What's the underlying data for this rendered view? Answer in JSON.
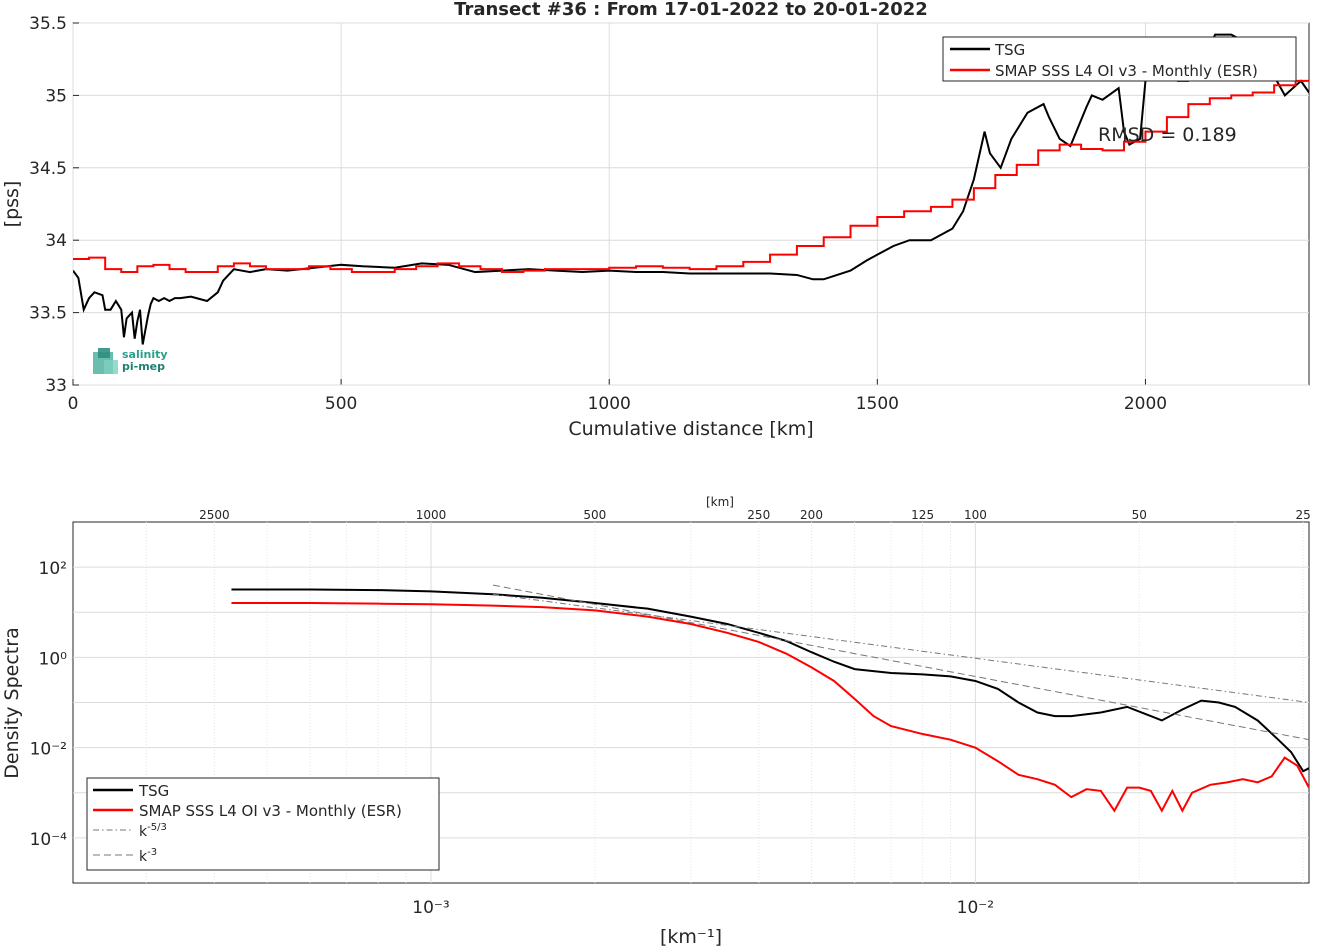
{
  "chart_data": [
    {
      "type": "line",
      "title": "Transect #36 : From 17-01-2022 to 20-01-2022",
      "xlabel": "Cumulative distance [km]",
      "ylabel": "[pss]",
      "xlim": [
        0,
        2305
      ],
      "ylim": [
        33,
        35.5
      ],
      "xticks": [
        "0",
        "500",
        "1000",
        "1500",
        "2000"
      ],
      "yticks": [
        "33",
        "33.5",
        "34",
        "34.5",
        "35",
        "35.5"
      ],
      "grid": true,
      "legend_position": "top-right",
      "annotation": "RMSD = 0.189",
      "logo_text": [
        "salinity",
        "pi-mep"
      ],
      "series": [
        {
          "name": "TSG",
          "color": "#000000",
          "x": [
            0,
            10,
            20,
            30,
            40,
            55,
            60,
            70,
            80,
            90,
            95,
            100,
            110,
            115,
            120,
            125,
            130,
            140,
            145,
            150,
            160,
            170,
            180,
            190,
            200,
            220,
            250,
            270,
            280,
            300,
            330,
            360,
            400,
            450,
            500,
            540,
            600,
            650,
            700,
            730,
            750,
            800,
            850,
            900,
            950,
            1000,
            1050,
            1100,
            1150,
            1200,
            1250,
            1300,
            1350,
            1380,
            1400,
            1450,
            1480,
            1500,
            1530,
            1560,
            1600,
            1640,
            1660,
            1680,
            1700,
            1710,
            1720,
            1730,
            1750,
            1780,
            1810,
            1820,
            1840,
            1860,
            1890,
            1900,
            1920,
            1950,
            1960,
            1970,
            1990,
            2000,
            2010,
            2040,
            2060,
            2080,
            2100,
            2130,
            2160,
            2180,
            2200,
            2230,
            2260,
            2290,
            2305
          ],
          "y": [
            33.79,
            33.74,
            33.52,
            33.6,
            33.64,
            33.62,
            33.52,
            33.52,
            33.58,
            33.52,
            33.33,
            33.46,
            33.5,
            33.32,
            33.44,
            33.52,
            33.28,
            33.48,
            33.56,
            33.6,
            33.58,
            33.6,
            33.58,
            33.6,
            33.6,
            33.61,
            33.58,
            33.64,
            33.72,
            33.8,
            33.78,
            33.8,
            33.79,
            33.81,
            33.83,
            33.82,
            33.81,
            33.84,
            33.83,
            33.8,
            33.78,
            33.79,
            33.8,
            33.79,
            33.78,
            33.79,
            33.78,
            33.78,
            33.77,
            33.77,
            33.77,
            33.77,
            33.76,
            33.73,
            33.73,
            33.79,
            33.86,
            33.9,
            33.96,
            34.0,
            34.0,
            34.08,
            34.2,
            34.42,
            34.75,
            34.6,
            34.55,
            34.5,
            34.7,
            34.88,
            34.94,
            34.85,
            34.7,
            34.65,
            34.92,
            35.0,
            34.97,
            35.05,
            34.75,
            34.66,
            34.7,
            35.1,
            35.3,
            35.2,
            35.1,
            35.1,
            35.2,
            35.42,
            35.42,
            35.38,
            35.15,
            35.2,
            35.0,
            35.1,
            35.02
          ]
        },
        {
          "name": "SMAP SSS L4 OI v3 - Monthly (ESR)",
          "color": "#ff0000",
          "x": [
            0,
            30,
            60,
            90,
            120,
            150,
            180,
            210,
            240,
            270,
            300,
            330,
            360,
            400,
            440,
            480,
            520,
            560,
            600,
            640,
            680,
            720,
            760,
            800,
            840,
            880,
            920,
            960,
            1000,
            1050,
            1100,
            1150,
            1200,
            1250,
            1300,
            1350,
            1400,
            1450,
            1500,
            1550,
            1600,
            1640,
            1680,
            1720,
            1760,
            1800,
            1840,
            1880,
            1920,
            1960,
            2000,
            2040,
            2080,
            2120,
            2160,
            2200,
            2240,
            2280,
            2305
          ],
          "y": [
            33.87,
            33.88,
            33.8,
            33.78,
            33.82,
            33.83,
            33.8,
            33.78,
            33.78,
            33.82,
            33.84,
            33.82,
            33.8,
            33.8,
            33.82,
            33.8,
            33.78,
            33.78,
            33.8,
            33.82,
            33.84,
            33.82,
            33.8,
            33.78,
            33.79,
            33.8,
            33.8,
            33.8,
            33.81,
            33.82,
            33.81,
            33.8,
            33.82,
            33.85,
            33.9,
            33.96,
            34.02,
            34.1,
            34.16,
            34.2,
            34.23,
            34.28,
            34.36,
            34.45,
            34.52,
            34.62,
            34.66,
            34.63,
            34.62,
            34.68,
            34.75,
            34.85,
            34.94,
            34.98,
            35.0,
            35.02,
            35.07,
            35.1,
            35.1
          ]
        }
      ]
    },
    {
      "type": "line",
      "title": "",
      "xlabel": "[km⁻¹]",
      "ylabel": "Density Spectra",
      "x_scale": "log",
      "y_scale": "log",
      "xlim": [
        0.00022,
        0.041
      ],
      "ylim": [
        1e-05,
        1000
      ],
      "xticks": [
        "10⁻³",
        "10⁻²"
      ],
      "yticks": [
        "10⁻⁴",
        "10⁻²",
        "10⁰",
        "10²"
      ],
      "top_axis_label": "[km]",
      "top_axis_ticks": [
        "2500",
        "1000",
        "500",
        "250",
        "200",
        "125",
        "100",
        "50",
        "25"
      ],
      "grid": true,
      "legend_position": "bottom-left",
      "series": [
        {
          "name": "TSG",
          "color": "#000000",
          "x": [
            0.00043,
            0.0006,
            0.0008,
            0.001,
            0.0013,
            0.0016,
            0.002,
            0.0025,
            0.003,
            0.0035,
            0.004,
            0.0045,
            0.005,
            0.0055,
            0.006,
            0.007,
            0.008,
            0.009,
            0.01,
            0.011,
            0.012,
            0.013,
            0.014,
            0.015,
            0.017,
            0.019,
            0.021,
            0.022,
            0.024,
            0.026,
            0.028,
            0.03,
            0.033,
            0.036,
            0.038,
            0.04,
            0.041
          ],
          "y": [
            32,
            32,
            31,
            29,
            25,
            21,
            16,
            12,
            8,
            5.5,
            3.5,
            2.3,
            1.3,
            0.8,
            0.55,
            0.45,
            0.42,
            0.38,
            0.3,
            0.2,
            0.1,
            0.06,
            0.05,
            0.05,
            0.06,
            0.08,
            0.05,
            0.04,
            0.07,
            0.11,
            0.1,
            0.08,
            0.04,
            0.015,
            0.008,
            0.003,
            0.0035
          ]
        },
        {
          "name": "SMAP SSS L4 OI v3 - Monthly (ESR)",
          "color": "#ff0000",
          "x": [
            0.00043,
            0.0006,
            0.0008,
            0.001,
            0.0013,
            0.0016,
            0.002,
            0.0025,
            0.003,
            0.0035,
            0.004,
            0.0045,
            0.005,
            0.0055,
            0.006,
            0.0065,
            0.007,
            0.008,
            0.009,
            0.01,
            0.011,
            0.012,
            0.013,
            0.014,
            0.015,
            0.016,
            0.017,
            0.018,
            0.019,
            0.02,
            0.021,
            0.022,
            0.023,
            0.024,
            0.025,
            0.027,
            0.029,
            0.031,
            0.033,
            0.035,
            0.037,
            0.039,
            0.041
          ],
          "y": [
            16,
            16,
            15.5,
            15,
            14,
            13,
            11,
            8,
            5.5,
            3.5,
            2.2,
            1.2,
            0.6,
            0.3,
            0.12,
            0.05,
            0.03,
            0.02,
            0.015,
            0.01,
            0.005,
            0.0025,
            0.002,
            0.0015,
            0.0008,
            0.0012,
            0.0011,
            0.0004,
            0.0013,
            0.0013,
            0.0011,
            0.0004,
            0.0011,
            0.0004,
            0.001,
            0.0015,
            0.0017,
            0.002,
            0.0017,
            0.0023,
            0.006,
            0.004,
            0.0013
          ]
        },
        {
          "name": "k⁻⁵ᐟ³",
          "legend_base": "k",
          "legend_exp": "-5/3",
          "color": "#777777",
          "dash": "dashdot",
          "x": [
            0.0013,
            0.041
          ],
          "y": [
            25,
            0.1
          ]
        },
        {
          "name": "k⁻³",
          "legend_base": "k",
          "legend_exp": "-3",
          "color": "#777777",
          "dash": "dash",
          "x": [
            0.0013,
            0.041
          ],
          "y": [
            40,
            0.015
          ]
        }
      ]
    }
  ]
}
